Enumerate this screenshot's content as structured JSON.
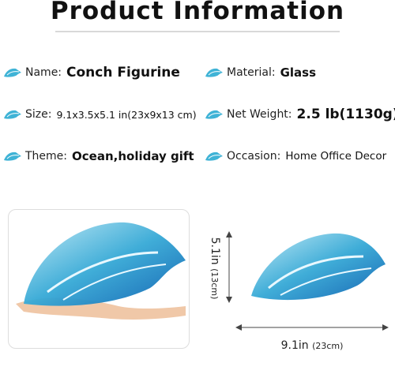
{
  "header": {
    "title": "Product Information"
  },
  "specs": [
    {
      "label": "Name:",
      "value": "Conch Figurine"
    },
    {
      "label": "Material:",
      "value": "Glass"
    },
    {
      "label": "Size:",
      "value": "9.1x3.5x5.1 in(23x9x13 cm)"
    },
    {
      "label": "Net Weight:",
      "value": "2.5 lb(1130g)"
    },
    {
      "label": "Theme:",
      "value": "Ocean,holiday gift"
    },
    {
      "label": "Occasion:",
      "value": "Home Office Decor"
    }
  ],
  "dimensions": {
    "height": "5.1in",
    "height_metric": "(13cm)",
    "width": "9.1in",
    "width_metric": "(23cm)"
  }
}
